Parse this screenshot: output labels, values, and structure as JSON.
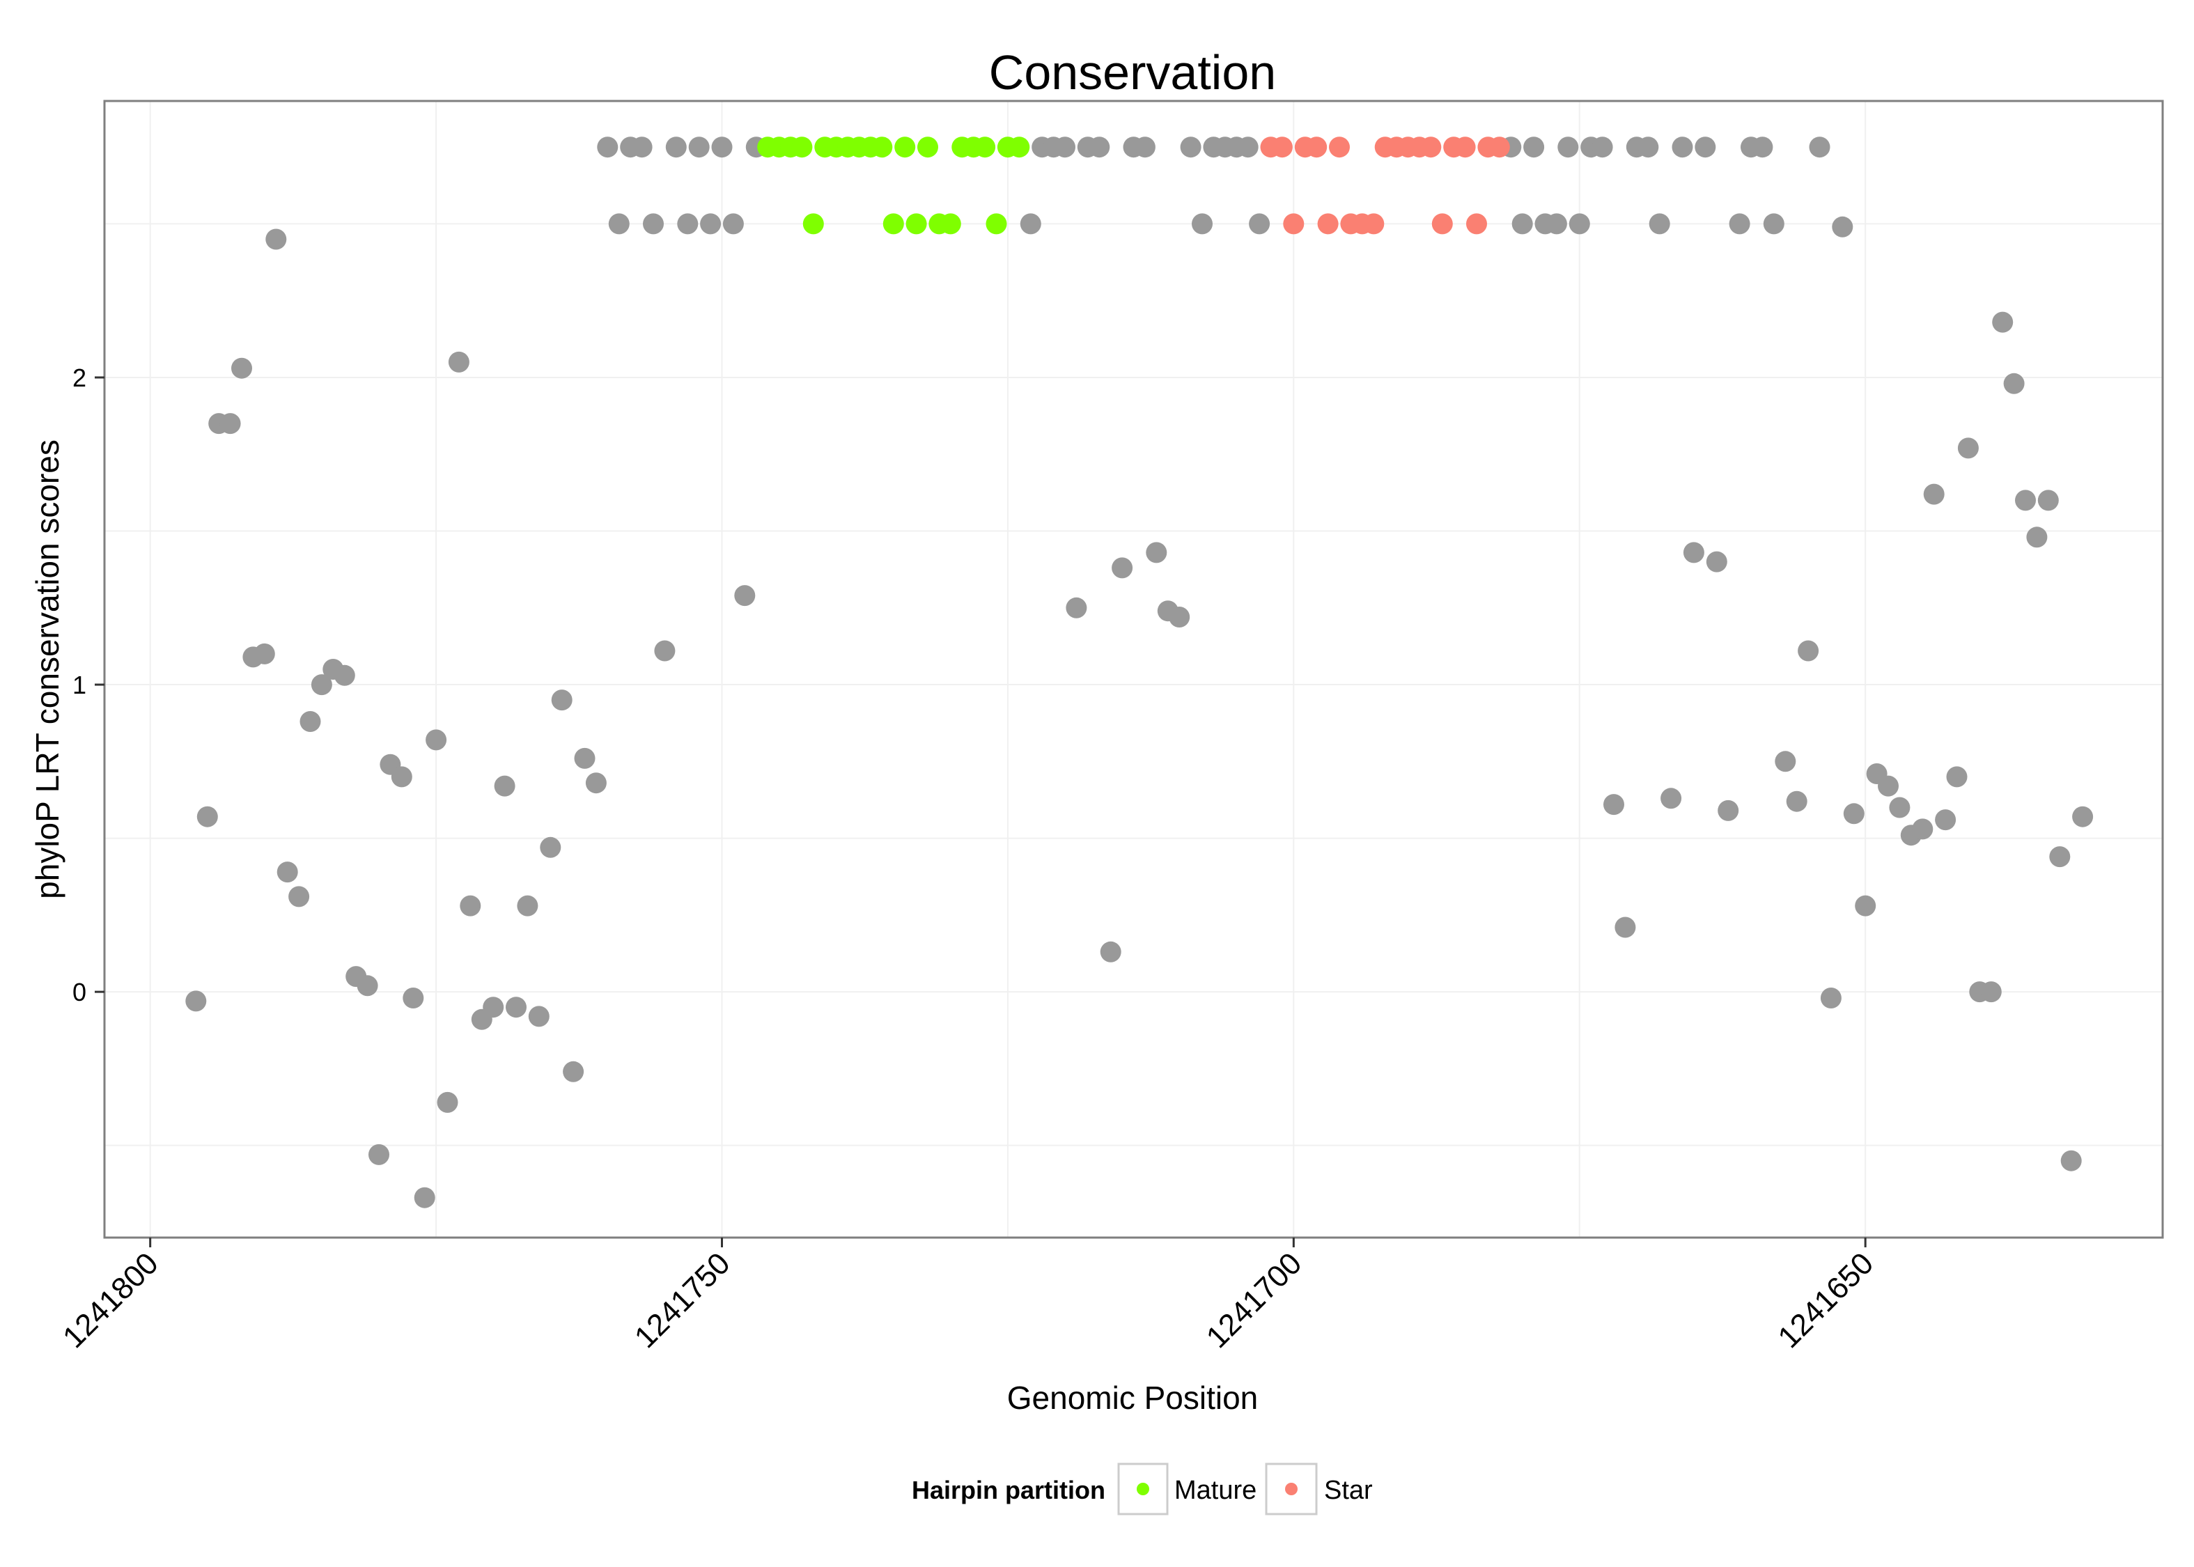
{
  "chart_data": {
    "type": "scatter",
    "title": "Conservation",
    "xlabel": "Genomic Position",
    "ylabel": "phyloP LRT conservation scores",
    "x_reversed": true,
    "xlim": [
      1241804,
      1241624
    ],
    "ylim": [
      -0.8,
      2.9
    ],
    "x_ticks": [
      1241800,
      1241750,
      1241700,
      1241650
    ],
    "x_tick_labels": [
      "1241800",
      "1241750",
      "1241700",
      "1241650"
    ],
    "y_ticks": [
      0,
      1,
      2
    ],
    "y_tick_labels": [
      "0",
      "1",
      "2"
    ],
    "grid": true,
    "legend": {
      "title": "Hairpin partition",
      "position": "bottom",
      "entries": [
        {
          "label": "Mature",
          "color": "#7FFF00"
        },
        {
          "label": "Star",
          "color": "#FA8072"
        }
      ]
    },
    "colors": {
      "other": "#999999",
      "Mature": "#7FFF00",
      "Star": "#FA8072"
    },
    "series": [
      {
        "group": "other",
        "points": [
          [
            1241796,
            -0.03
          ],
          [
            1241795,
            0.57
          ],
          [
            1241794,
            1.85
          ],
          [
            1241793,
            1.85
          ],
          [
            1241792,
            2.03
          ],
          [
            1241791,
            1.09
          ],
          [
            1241790,
            1.1
          ],
          [
            1241789,
            2.45
          ],
          [
            1241788,
            0.39
          ],
          [
            1241787,
            0.31
          ],
          [
            1241786,
            0.88
          ],
          [
            1241785,
            1.0
          ],
          [
            1241784,
            1.05
          ],
          [
            1241783,
            1.03
          ],
          [
            1241782,
            0.05
          ],
          [
            1241781,
            0.02
          ],
          [
            1241780,
            -0.53
          ],
          [
            1241779,
            0.74
          ],
          [
            1241778,
            0.7
          ],
          [
            1241777,
            -0.02
          ],
          [
            1241776,
            -0.67
          ],
          [
            1241775,
            0.82
          ],
          [
            1241774,
            -0.36
          ],
          [
            1241773,
            2.05
          ],
          [
            1241772,
            0.28
          ],
          [
            1241771,
            -0.09
          ],
          [
            1241770,
            -0.05
          ],
          [
            1241769,
            0.67
          ],
          [
            1241768,
            -0.05
          ],
          [
            1241767,
            0.28
          ],
          [
            1241766,
            -0.08
          ],
          [
            1241765,
            0.47
          ],
          [
            1241764,
            0.95
          ],
          [
            1241763,
            -0.26
          ],
          [
            1241762,
            0.76
          ],
          [
            1241761,
            0.68
          ],
          [
            1241760,
            2.75
          ],
          [
            1241759,
            2.5
          ],
          [
            1241758,
            2.75
          ],
          [
            1241757,
            2.75
          ],
          [
            1241756,
            2.5
          ],
          [
            1241755,
            1.11
          ],
          [
            1241754,
            2.75
          ],
          [
            1241753,
            2.5
          ],
          [
            1241752,
            2.75
          ],
          [
            1241751,
            2.5
          ],
          [
            1241750,
            2.75
          ],
          [
            1241749,
            2.5
          ],
          [
            1241748,
            1.29
          ],
          [
            1241747,
            2.75
          ],
          [
            1241723,
            2.5
          ],
          [
            1241722,
            2.75
          ],
          [
            1241721,
            2.75
          ],
          [
            1241720,
            2.75
          ],
          [
            1241719,
            1.25
          ],
          [
            1241718,
            2.75
          ],
          [
            1241717,
            2.75
          ],
          [
            1241716,
            0.13
          ],
          [
            1241715,
            1.38
          ],
          [
            1241714,
            2.75
          ],
          [
            1241713,
            2.75
          ],
          [
            1241712,
            1.43
          ],
          [
            1241711,
            1.24
          ],
          [
            1241710,
            1.22
          ],
          [
            1241709,
            2.75
          ],
          [
            1241708,
            2.5
          ],
          [
            1241707,
            2.75
          ],
          [
            1241706,
            2.75
          ],
          [
            1241705,
            2.75
          ],
          [
            1241704,
            2.75
          ],
          [
            1241703,
            2.5
          ],
          [
            1241681,
            2.75
          ],
          [
            1241680,
            2.5
          ],
          [
            1241679,
            2.75
          ],
          [
            1241678,
            2.5
          ],
          [
            1241677,
            2.5
          ],
          [
            1241676,
            2.75
          ],
          [
            1241675,
            2.5
          ],
          [
            1241674,
            2.75
          ],
          [
            1241673,
            2.75
          ],
          [
            1241672,
            0.61
          ],
          [
            1241671,
            0.21
          ],
          [
            1241670,
            2.75
          ],
          [
            1241669,
            2.75
          ],
          [
            1241668,
            2.5
          ],
          [
            1241667,
            0.63
          ],
          [
            1241666,
            2.75
          ],
          [
            1241665,
            1.43
          ],
          [
            1241664,
            2.75
          ],
          [
            1241663,
            1.4
          ],
          [
            1241662,
            0.59
          ],
          [
            1241661,
            2.5
          ],
          [
            1241660,
            2.75
          ],
          [
            1241659,
            2.75
          ],
          [
            1241658,
            2.5
          ],
          [
            1241657,
            0.75
          ],
          [
            1241656,
            0.62
          ],
          [
            1241655,
            1.11
          ],
          [
            1241654,
            2.75
          ],
          [
            1241653,
            -0.02
          ],
          [
            1241652,
            2.49
          ],
          [
            1241651,
            0.58
          ],
          [
            1241650,
            0.28
          ],
          [
            1241649,
            0.71
          ],
          [
            1241648,
            0.67
          ],
          [
            1241647,
            0.6
          ],
          [
            1241646,
            0.51
          ],
          [
            1241645,
            0.53
          ],
          [
            1241644,
            1.62
          ],
          [
            1241643,
            0.56
          ],
          [
            1241642,
            0.7
          ],
          [
            1241641,
            1.77
          ],
          [
            1241640,
            0.0
          ],
          [
            1241639,
            0.0
          ],
          [
            1241638,
            2.18
          ],
          [
            1241637,
            1.98
          ],
          [
            1241636,
            1.6
          ],
          [
            1241635,
            1.48
          ],
          [
            1241634,
            1.6
          ],
          [
            1241633,
            0.44
          ],
          [
            1241632,
            -0.55
          ],
          [
            1241631,
            0.57
          ]
        ]
      },
      {
        "group": "Mature",
        "points": [
          [
            1241746,
            2.75
          ],
          [
            1241745,
            2.75
          ],
          [
            1241744,
            2.75
          ],
          [
            1241743,
            2.75
          ],
          [
            1241742,
            2.5
          ],
          [
            1241741,
            2.75
          ],
          [
            1241740,
            2.75
          ],
          [
            1241739,
            2.75
          ],
          [
            1241738,
            2.75
          ],
          [
            1241737,
            2.75
          ],
          [
            1241736,
            2.75
          ],
          [
            1241735,
            2.5
          ],
          [
            1241734,
            2.75
          ],
          [
            1241733,
            2.5
          ],
          [
            1241732,
            2.75
          ],
          [
            1241731,
            2.5
          ],
          [
            1241730,
            2.5
          ],
          [
            1241729,
            2.75
          ],
          [
            1241728,
            2.75
          ],
          [
            1241727,
            2.75
          ],
          [
            1241726,
            2.5
          ],
          [
            1241725,
            2.75
          ],
          [
            1241724,
            2.75
          ]
        ]
      },
      {
        "group": "Star",
        "points": [
          [
            1241702,
            2.75
          ],
          [
            1241701,
            2.75
          ],
          [
            1241700,
            2.5
          ],
          [
            1241699,
            2.75
          ],
          [
            1241698,
            2.75
          ],
          [
            1241697,
            2.5
          ],
          [
            1241696,
            2.75
          ],
          [
            1241695,
            2.5
          ],
          [
            1241694,
            2.5
          ],
          [
            1241693,
            2.5
          ],
          [
            1241692,
            2.75
          ],
          [
            1241691,
            2.75
          ],
          [
            1241690,
            2.75
          ],
          [
            1241689,
            2.75
          ],
          [
            1241688,
            2.75
          ],
          [
            1241687,
            2.5
          ],
          [
            1241686,
            2.75
          ],
          [
            1241685,
            2.75
          ],
          [
            1241684,
            2.5
          ],
          [
            1241683,
            2.75
          ],
          [
            1241682,
            2.75
          ]
        ]
      }
    ]
  }
}
